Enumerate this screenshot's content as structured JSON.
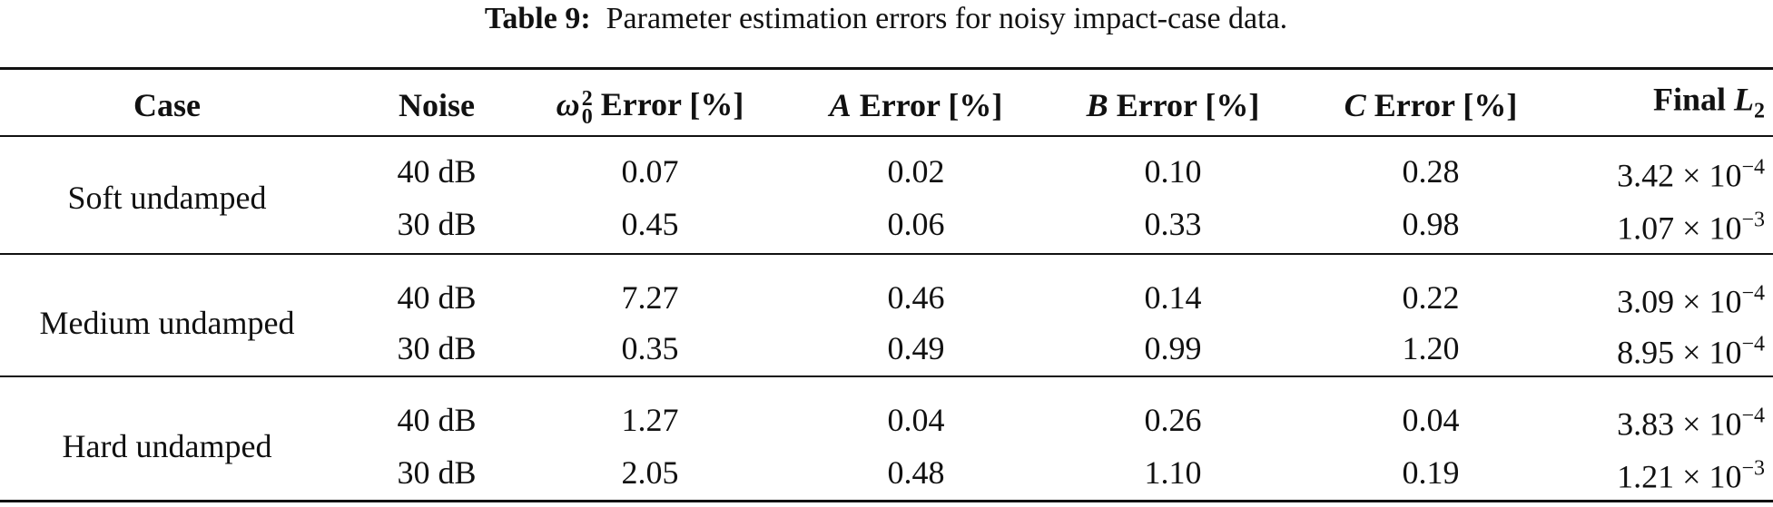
{
  "caption": {
    "label": "Table 9:",
    "text": "Parameter estimation errors for noisy impact-case data."
  },
  "table": {
    "header": [
      {
        "post": "Case"
      },
      {
        "post": "Noise"
      },
      {
        "symbol": "ω",
        "sub": "0",
        "sup": "2",
        "post": "Error [%]"
      },
      {
        "symbol": "A",
        "post": "Error [%]"
      },
      {
        "symbol": "B",
        "post": "Error [%]"
      },
      {
        "symbol": "C",
        "post": "Error [%]"
      },
      {
        "pre": "Final",
        "symbol": "L",
        "sub": "2"
      }
    ],
    "groups": [
      {
        "case": "Soft undamped",
        "rows": [
          {
            "noise": "40 dB",
            "values": [
              "0.07",
              "0.02",
              "0.10",
              "0.28"
            ],
            "final": {
              "mantissa": "3.42 × 10",
              "exponent": "−4"
            }
          },
          {
            "noise": "30 dB",
            "values": [
              "0.45",
              "0.06",
              "0.33",
              "0.98"
            ],
            "final": {
              "mantissa": "1.07 × 10",
              "exponent": "−3"
            }
          }
        ]
      },
      {
        "case": "Medium undamped",
        "rows": [
          {
            "noise": "40 dB",
            "values": [
              "7.27",
              "0.46",
              "0.14",
              "0.22"
            ],
            "final": {
              "mantissa": "3.09 × 10",
              "exponent": "−4"
            }
          },
          {
            "noise": "30 dB",
            "values": [
              "0.35",
              "0.49",
              "0.99",
              "1.20"
            ],
            "final": {
              "mantissa": "8.95 × 10",
              "exponent": "−4"
            }
          }
        ]
      },
      {
        "case": "Hard undamped",
        "rows": [
          {
            "noise": "40 dB",
            "values": [
              "1.27",
              "0.04",
              "0.26",
              "0.04"
            ],
            "final": {
              "mantissa": "3.83 × 10",
              "exponent": "−4"
            }
          },
          {
            "noise": "30 dB",
            "values": [
              "2.05",
              "0.48",
              "1.10",
              "0.19"
            ],
            "final": {
              "mantissa": "1.21 × 10",
              "exponent": "−3"
            }
          }
        ]
      }
    ]
  }
}
